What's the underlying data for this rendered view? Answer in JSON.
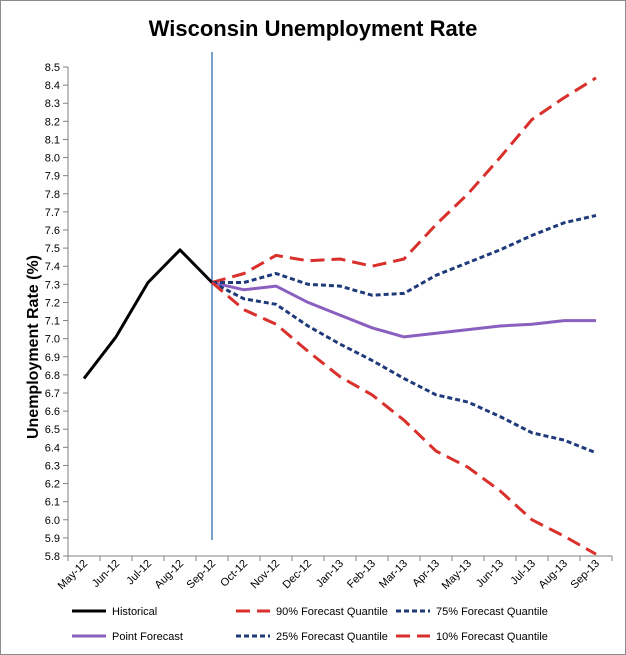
{
  "chart_data": {
    "type": "line",
    "title": "Wisconsin Unemployment Rate",
    "xlabel": "",
    "ylabel": "Unemployment Rate (%)",
    "ylim": [
      5.8,
      8.5
    ],
    "ytick_step": 0.1,
    "categories": [
      "May-12",
      "Jun-12",
      "Jul-12",
      "Aug-12",
      "Sep-12",
      "Oct-12",
      "Nov-12",
      "Dec-12",
      "Jan-13",
      "Feb-13",
      "Mar-13",
      "Apr-13",
      "May-13",
      "Jun-13",
      "Jul-13",
      "Aug-13",
      "Sep-13"
    ],
    "vline_category": "Sep-12",
    "series": [
      {
        "name": "Historical",
        "color": "#000000",
        "dash": "solid",
        "values": [
          6.78,
          7.01,
          7.31,
          7.49,
          7.31,
          null,
          null,
          null,
          null,
          null,
          null,
          null,
          null,
          null,
          null,
          null,
          null
        ]
      },
      {
        "name": "Point Forecast",
        "color": "#8B5FBF",
        "dash": "solid",
        "values": [
          null,
          null,
          null,
          null,
          7.31,
          7.27,
          7.29,
          7.2,
          7.13,
          7.06,
          7.01,
          7.03,
          7.05,
          7.07,
          7.08,
          7.1,
          7.1
        ]
      },
      {
        "name": "90% Forecast Quantile",
        "color": "#D9302C",
        "dash": "long",
        "values": [
          null,
          null,
          null,
          null,
          7.31,
          7.36,
          7.46,
          7.43,
          7.44,
          7.4,
          7.44,
          7.63,
          7.8,
          8.0,
          8.21,
          8.33,
          8.44
        ]
      },
      {
        "name": "25% Forecast Quantile",
        "color": "#1F3A7A",
        "dash": "short",
        "values": [
          null,
          null,
          null,
          null,
          7.31,
          7.22,
          7.19,
          7.07,
          6.97,
          6.88,
          6.78,
          6.69,
          6.65,
          6.57,
          6.48,
          6.44,
          6.37
        ]
      },
      {
        "name": "75% Forecast Quantile",
        "color": "#1F3A7A",
        "dash": "short",
        "values": [
          null,
          null,
          null,
          null,
          7.31,
          7.31,
          7.36,
          7.3,
          7.29,
          7.24,
          7.25,
          7.35,
          7.42,
          7.49,
          7.57,
          7.64,
          7.68
        ]
      },
      {
        "name": "10% Forecast Quantile",
        "color": "#D9302C",
        "dash": "long",
        "values": [
          null,
          null,
          null,
          null,
          7.31,
          7.16,
          7.08,
          6.93,
          6.79,
          6.69,
          6.55,
          6.38,
          6.29,
          6.16,
          6.0,
          5.91,
          5.81
        ]
      }
    ],
    "legend": {
      "placement": "bottom",
      "order": [
        "Historical",
        "90% Forecast Quantile",
        "75% Forecast Quantile",
        "Point Forecast",
        "25% Forecast Quantile",
        "10% Forecast Quantile"
      ]
    }
  }
}
